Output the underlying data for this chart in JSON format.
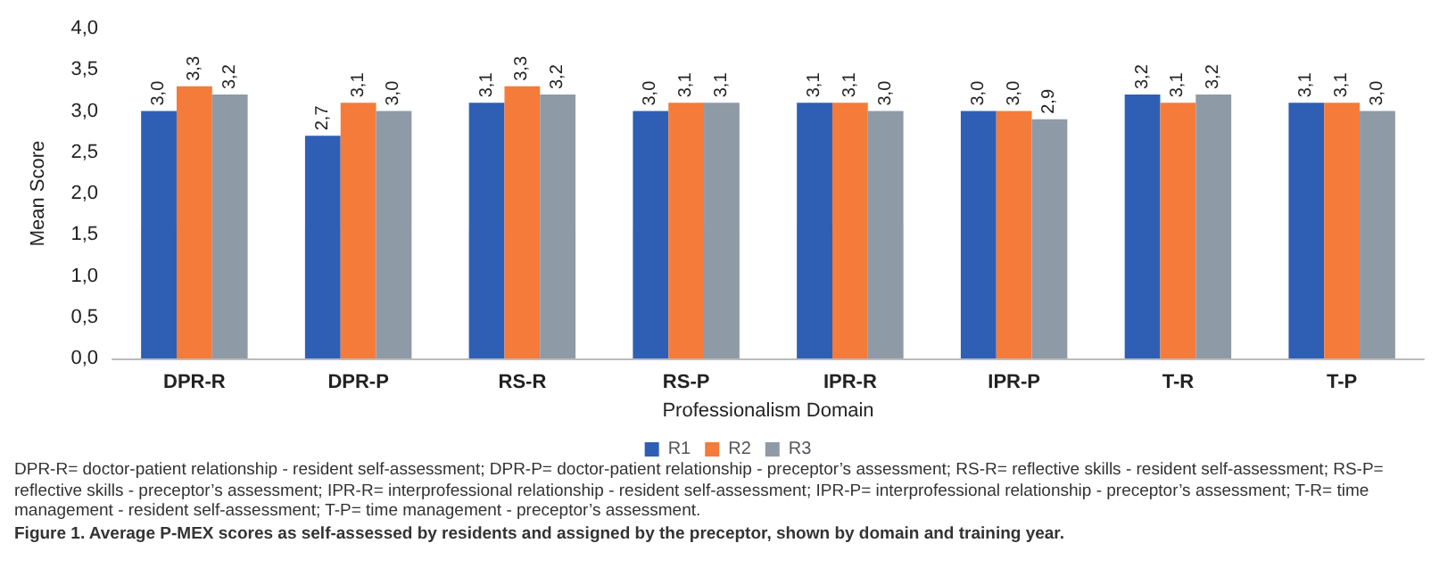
{
  "chart_data": {
    "type": "bar",
    "xlabel": "Professionalism Domain",
    "ylabel": "Mean Score",
    "categories": [
      "DPR-R",
      "DPR-P",
      "RS-R",
      "RS-P",
      "IPR-R",
      "IPR-P",
      "T-R",
      "T-P"
    ],
    "series": [
      {
        "name": "R1",
        "color": "#2e5fb5",
        "values": [
          3.0,
          2.7,
          3.1,
          3.0,
          3.1,
          3.0,
          3.2,
          3.1
        ],
        "value_labels": [
          "3,0",
          "2,7",
          "3,1",
          "3,0",
          "3,1",
          "3,0",
          "3,2",
          "3,1"
        ]
      },
      {
        "name": "R2",
        "color": "#f47b3a",
        "values": [
          3.3,
          3.1,
          3.3,
          3.1,
          3.1,
          3.0,
          3.1,
          3.1
        ],
        "value_labels": [
          "3,3",
          "3,1",
          "3,3",
          "3,1",
          "3,1",
          "3,0",
          "3,1",
          "3,1"
        ]
      },
      {
        "name": "R3",
        "color": "#8e9aa6",
        "values": [
          3.2,
          3.0,
          3.2,
          3.1,
          3.0,
          2.9,
          3.2,
          3.0
        ],
        "value_labels": [
          "3,2",
          "3,0",
          "3,2",
          "3,1",
          "3,0",
          "2,9",
          "3,2",
          "3,0"
        ]
      }
    ],
    "ylim": [
      0,
      4
    ],
    "yticks": [
      {
        "value": 0,
        "label": "0,0"
      },
      {
        "value": 0.5,
        "label": "0,5"
      },
      {
        "value": 1,
        "label": "1,0"
      },
      {
        "value": 1.5,
        "label": "1,5"
      },
      {
        "value": 2,
        "label": "2,0"
      },
      {
        "value": 2.5,
        "label": "2,5"
      },
      {
        "value": 3,
        "label": "3,0"
      },
      {
        "value": 3.5,
        "label": "3,5"
      },
      {
        "value": 4,
        "label": "4,0"
      }
    ],
    "grid": false,
    "legend": "bottom",
    "annotations": [
      "DPR-R= doctor-patient relationship - resident self-assessment; DPR-P= doctor-patient relationship - preceptor’s assessment; RS-R= reflective skills - resident self-assessment; RS-P= reflective skills - preceptor’s assessment; IPR-R= interprofessional relationship - resident self-assessment; IPR-P= interprofessional relationship - preceptor’s assessment; T-R= time management - resident self-assessment; T-P= time management - preceptor’s assessment.",
      "Figure 1. Average P-MEX scores as self-assessed by residents and assigned by the preceptor, shown by domain and training year."
    ]
  }
}
